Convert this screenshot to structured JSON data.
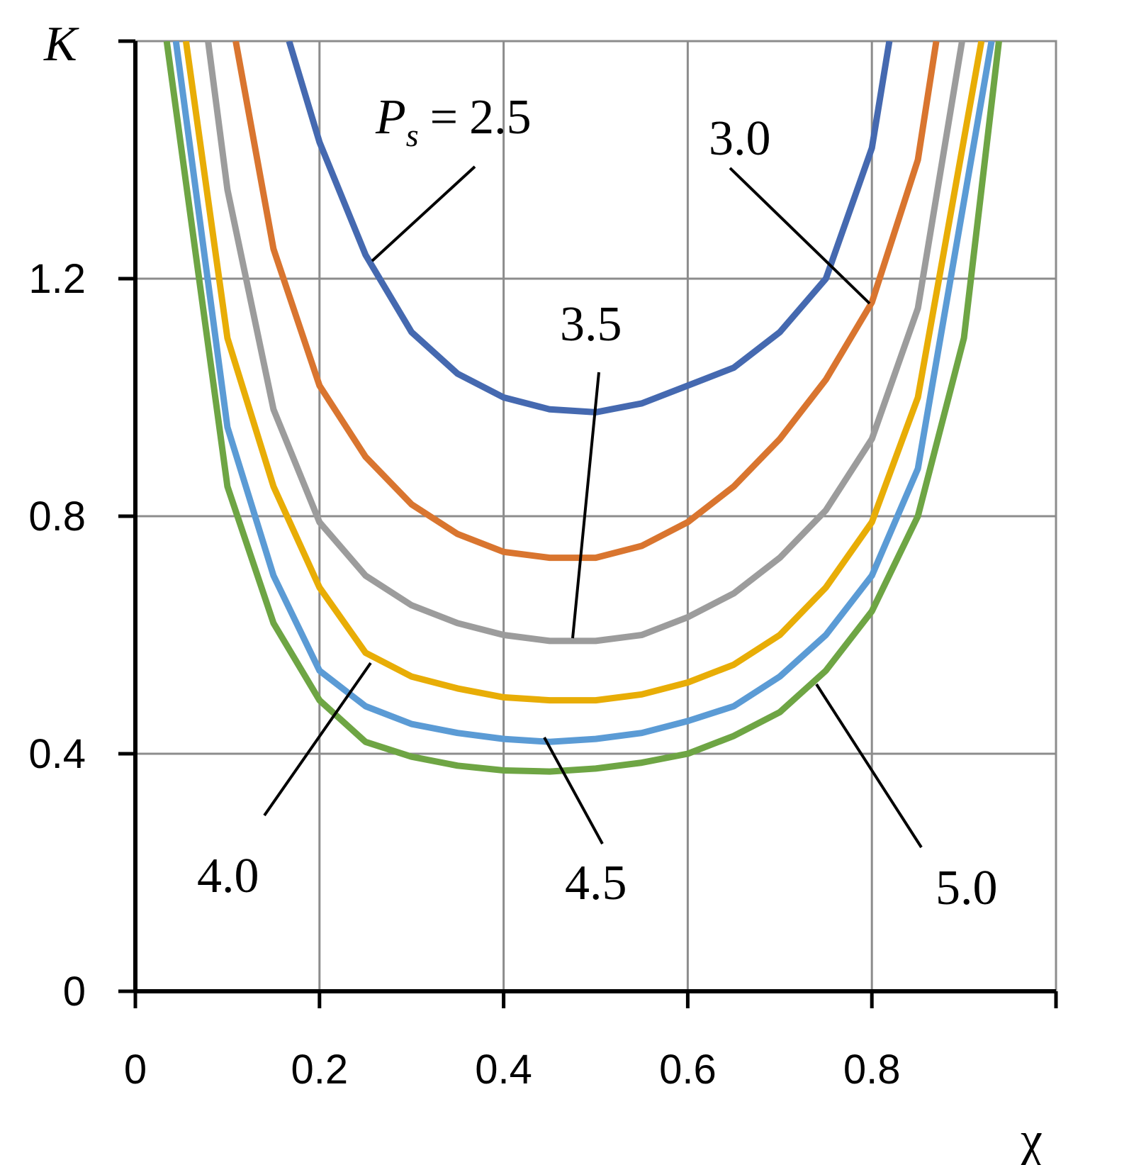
{
  "chart_data": {
    "type": "line",
    "x_label": "χ",
    "y_label": "K",
    "label_prefix": "P",
    "label_subscript": "s",
    "label_operator": "=",
    "xlim": [
      0,
      1
    ],
    "ylim": [
      0,
      1.6
    ],
    "xticks": [
      0,
      0.2,
      0.4,
      0.6,
      0.8
    ],
    "yticks": [
      0,
      0.4,
      0.8,
      1.2
    ],
    "grid": true,
    "series": [
      {
        "name": "2.5",
        "color": "#4569b0",
        "x": [
          0.167,
          0.2,
          0.25,
          0.3,
          0.35,
          0.4,
          0.45,
          0.5,
          0.55,
          0.6,
          0.65,
          0.7,
          0.75,
          0.8,
          0.819
        ],
        "values": [
          1.6,
          1.43,
          1.24,
          1.11,
          1.04,
          1.0,
          0.98,
          0.975,
          0.99,
          1.02,
          1.05,
          1.11,
          1.2,
          1.42,
          1.6
        ]
      },
      {
        "name": "3.0",
        "color": "#d9752f",
        "x": [
          0.109,
          0.15,
          0.2,
          0.25,
          0.3,
          0.35,
          0.4,
          0.45,
          0.5,
          0.55,
          0.6,
          0.65,
          0.7,
          0.75,
          0.8,
          0.85,
          0.87
        ],
        "values": [
          1.6,
          1.25,
          1.02,
          0.9,
          0.82,
          0.77,
          0.74,
          0.73,
          0.73,
          0.75,
          0.79,
          0.85,
          0.93,
          1.03,
          1.16,
          1.4,
          1.6
        ]
      },
      {
        "name": "3.5",
        "color": "#9c9c9c",
        "x": [
          0.079,
          0.1,
          0.15,
          0.2,
          0.25,
          0.3,
          0.35,
          0.4,
          0.45,
          0.5,
          0.55,
          0.6,
          0.65,
          0.7,
          0.75,
          0.8,
          0.85,
          0.898
        ],
        "values": [
          1.6,
          1.35,
          0.98,
          0.79,
          0.7,
          0.65,
          0.62,
          0.6,
          0.59,
          0.59,
          0.6,
          0.63,
          0.67,
          0.73,
          0.81,
          0.93,
          1.15,
          1.6
        ]
      },
      {
        "name": "4.0",
        "color": "#e8ad06",
        "x": [
          0.055,
          0.1,
          0.15,
          0.2,
          0.25,
          0.3,
          0.35,
          0.4,
          0.45,
          0.5,
          0.55,
          0.6,
          0.65,
          0.7,
          0.75,
          0.8,
          0.85,
          0.919
        ],
        "values": [
          1.6,
          1.1,
          0.85,
          0.68,
          0.57,
          0.53,
          0.51,
          0.495,
          0.49,
          0.49,
          0.5,
          0.52,
          0.55,
          0.6,
          0.68,
          0.79,
          1.0,
          1.6
        ]
      },
      {
        "name": "4.5",
        "color": "#5b9bd5",
        "x": [
          0.044,
          0.1,
          0.15,
          0.2,
          0.25,
          0.3,
          0.35,
          0.4,
          0.45,
          0.5,
          0.55,
          0.6,
          0.65,
          0.7,
          0.75,
          0.8,
          0.85,
          0.93
        ],
        "values": [
          1.6,
          0.95,
          0.7,
          0.54,
          0.48,
          0.45,
          0.435,
          0.425,
          0.42,
          0.425,
          0.435,
          0.455,
          0.48,
          0.53,
          0.6,
          0.7,
          0.88,
          1.6
        ]
      },
      {
        "name": "5.0",
        "color": "#6ea544",
        "x": [
          0.034,
          0.1,
          0.15,
          0.2,
          0.25,
          0.3,
          0.35,
          0.4,
          0.45,
          0.5,
          0.55,
          0.6,
          0.65,
          0.7,
          0.75,
          0.8,
          0.85,
          0.9,
          0.938
        ],
        "values": [
          1.6,
          0.85,
          0.62,
          0.49,
          0.42,
          0.395,
          0.38,
          0.372,
          0.37,
          0.375,
          0.385,
          0.4,
          0.43,
          0.47,
          0.54,
          0.64,
          0.8,
          1.1,
          1.6
        ]
      }
    ]
  }
}
